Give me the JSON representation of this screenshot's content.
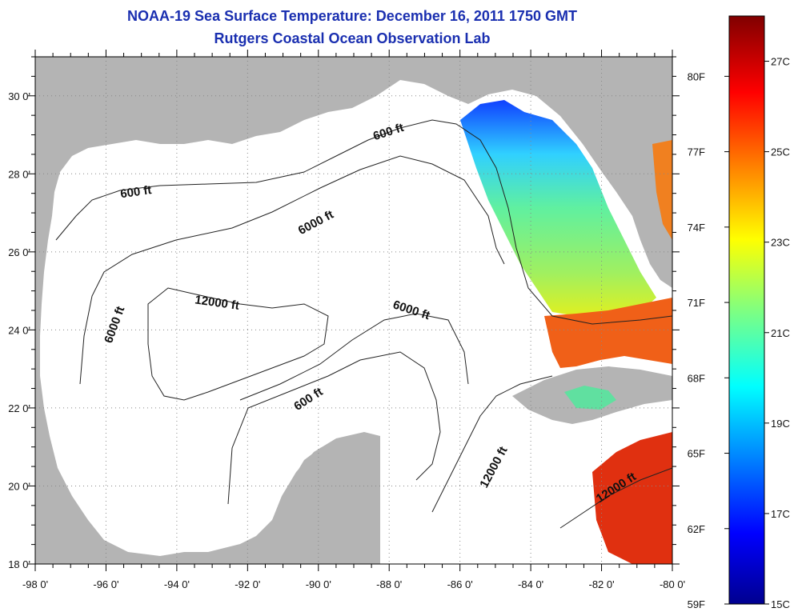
{
  "title": "NOAA-19 Sea Surface Temperature:  December 16, 2011 1750 GMT",
  "subtitle": "Rutgers Coastal Ocean Observation Lab",
  "map": {
    "lon_range": [
      -98,
      -80
    ],
    "lat_range": [
      18,
      31
    ],
    "x_ticks": [
      "-98 0'",
      "-96 0'",
      "-94 0'",
      "-92 0'",
      "-90 0'",
      "-88 0'",
      "-86 0'",
      "-84 0'",
      "-82 0'",
      "-80 0'"
    ],
    "y_ticks": [
      "18 0'",
      "20 0'",
      "22 0'",
      "24 0'",
      "26 0'",
      "28 0'",
      "30 0'"
    ],
    "gridlines": "dotted",
    "land_color": "#b4b4b4",
    "contour_labels": [
      {
        "text": "600 ft"
      },
      {
        "text": "600 ft"
      },
      {
        "text": "6000 ft"
      },
      {
        "text": "12000 ft"
      },
      {
        "text": "6000 ft"
      },
      {
        "text": "6000 ft"
      },
      {
        "text": "600 ft"
      },
      {
        "text": "12000 ft"
      },
      {
        "text": "12000 ft"
      }
    ]
  },
  "colorbar": {
    "range_c": [
      15,
      28
    ],
    "fahrenheit_labels": [
      "80F",
      "77F",
      "74F",
      "71F",
      "68F",
      "65F",
      "62F",
      "59F"
    ],
    "celsius_labels": [
      "27C",
      "25C",
      "23C",
      "21C",
      "19C",
      "17C",
      "15C"
    ]
  }
}
